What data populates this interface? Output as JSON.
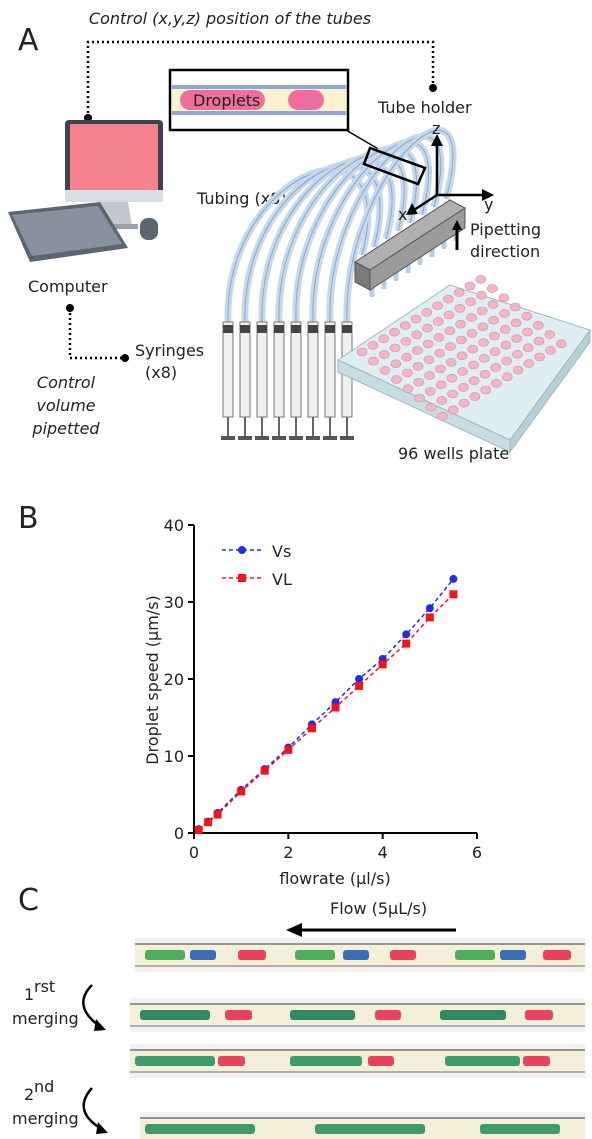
{
  "panel_a": {
    "label": "A",
    "title": "Control (x,y,z) position of the tubes",
    "tube_holder": "Tube holder",
    "droplets": "Droplets",
    "axis_z": "z",
    "axis_x": "x",
    "axis_y": "y",
    "tubing": "Tubing (x8)",
    "pipetting_direction": [
      "Pipetting",
      "direction"
    ],
    "computer": "Computer",
    "syringes": [
      "Syringes",
      "(x8)"
    ],
    "control_volume": [
      "Control",
      "volume",
      "pipetted"
    ],
    "plate": "96 wells plate"
  },
  "panel_b": {
    "label": "B"
  },
  "chart_data": {
    "type": "line",
    "x_label": "flowrate (µl/s)",
    "y_label": "Droplet speed (µm/s)",
    "x": [
      0.1,
      0.3,
      0.5,
      1,
      1.5,
      2,
      2.5,
      3,
      3.5,
      4,
      4.5,
      5,
      5.5
    ],
    "series": [
      {
        "name": "Vs",
        "color": "#1f2ee0",
        "marker": "circle",
        "values": [
          0.5,
          1.5,
          2.6,
          5.6,
          8.3,
          11.1,
          14.1,
          17.0,
          20.0,
          22.6,
          25.8,
          29.2,
          33.0
        ]
      },
      {
        "name": "VL",
        "color": "#f0141e",
        "marker": "square",
        "values": [
          0.4,
          1.4,
          2.4,
          5.4,
          8.1,
          10.8,
          13.6,
          16.3,
          19.1,
          21.9,
          24.6,
          28.0,
          31.0
        ]
      }
    ],
    "linestyle": "dashed",
    "legend": "upper left",
    "xlim": [
      0,
      6
    ],
    "xticks": [
      0,
      2,
      4,
      6
    ],
    "ylim": [
      0,
      40
    ],
    "yticks": [
      0,
      10,
      20,
      30,
      40
    ]
  },
  "panel_c": {
    "label": "C",
    "flow": "Flow (5µL/s)",
    "first_merging": [
      "1",
      "rst",
      "merging"
    ],
    "second_merging": [
      "2",
      "nd",
      "merging"
    ]
  }
}
